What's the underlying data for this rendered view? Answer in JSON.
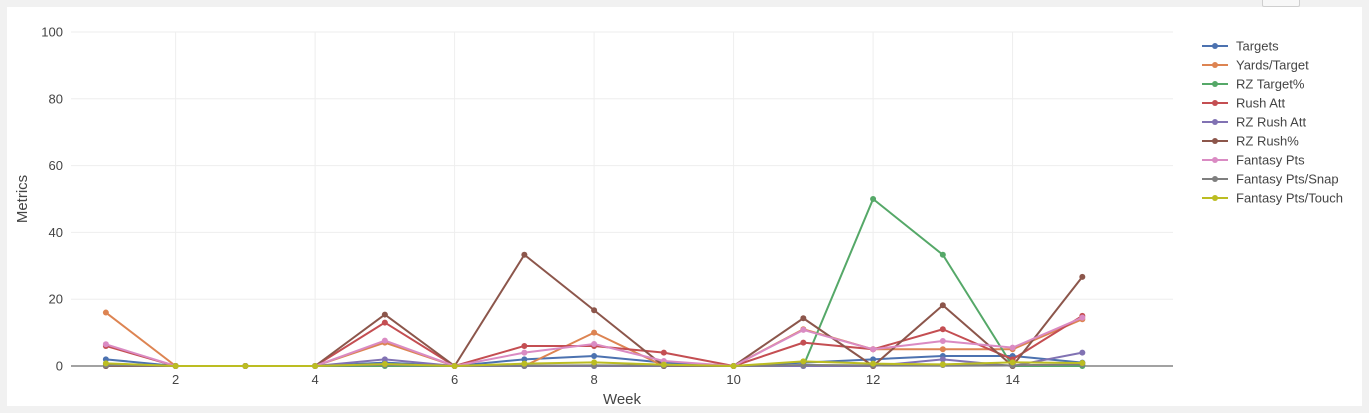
{
  "chart_data": {
    "type": "line",
    "xlabel": "Week",
    "ylabel": "Metrics",
    "xlim": [
      0.5,
      16.3
    ],
    "ylim": [
      0,
      100
    ],
    "x_ticks": [
      2,
      4,
      6,
      8,
      10,
      12,
      14
    ],
    "y_ticks": [
      0,
      20,
      40,
      60,
      80,
      100
    ],
    "grid": true,
    "legend_position": "right",
    "x": [
      1,
      2,
      3,
      4,
      5,
      6,
      7,
      8,
      9,
      10,
      11,
      12,
      13,
      14,
      15
    ],
    "series": [
      {
        "name": "Targets",
        "color": "#4c72b0",
        "values": [
          2,
          0,
          0,
          0,
          1,
          0,
          2,
          3,
          1,
          0,
          1,
          2,
          3,
          3,
          1
        ]
      },
      {
        "name": "Yards/Target",
        "color": "#dd8452",
        "values": [
          16,
          0,
          0,
          0,
          7,
          0,
          0,
          10,
          0,
          0,
          11,
          5,
          5,
          5,
          14
        ]
      },
      {
        "name": "RZ Target%",
        "color": "#55a868",
        "values": [
          0,
          0,
          0,
          0,
          0,
          0,
          0,
          0,
          0,
          0,
          0,
          50,
          33.3,
          0,
          0
        ]
      },
      {
        "name": "Rush Att",
        "color": "#c44e52",
        "values": [
          6,
          0,
          0,
          0,
          13,
          0,
          6,
          6,
          4,
          0,
          7,
          5,
          11,
          2,
          15
        ]
      },
      {
        "name": "RZ Rush Att",
        "color": "#8172b3",
        "values": [
          0,
          0,
          0,
          0,
          2,
          0,
          0,
          0,
          0,
          0,
          0,
          0,
          2,
          0,
          4
        ]
      },
      {
        "name": "RZ Rush%",
        "color": "#8c564b",
        "values": [
          0,
          0,
          0,
          0,
          15.4,
          0,
          33.3,
          16.7,
          0,
          0,
          14.3,
          0,
          18.2,
          0,
          26.7
        ]
      },
      {
        "name": "Fantasy Pts",
        "color": "#da8bc3",
        "values": [
          6.5,
          0,
          0,
          0,
          7.6,
          0,
          4,
          6.6,
          1.5,
          0,
          10.8,
          5,
          7.5,
          5.5,
          14.5
        ]
      },
      {
        "name": "Fantasy Pts/Snap",
        "color": "#7f7f7f",
        "values": [
          0.2,
          0,
          0,
          0,
          0.3,
          0,
          0.1,
          0.2,
          0.1,
          0,
          0.3,
          0.2,
          0.3,
          0.2,
          0.5
        ]
      },
      {
        "name": "Fantasy Pts/Touch",
        "color": "#bcbd22",
        "values": [
          0.8,
          0,
          0,
          0,
          0.6,
          0,
          0.7,
          1.1,
          0.4,
          0,
          1.4,
          0.7,
          0.5,
          1.1,
          0.9
        ]
      }
    ]
  }
}
